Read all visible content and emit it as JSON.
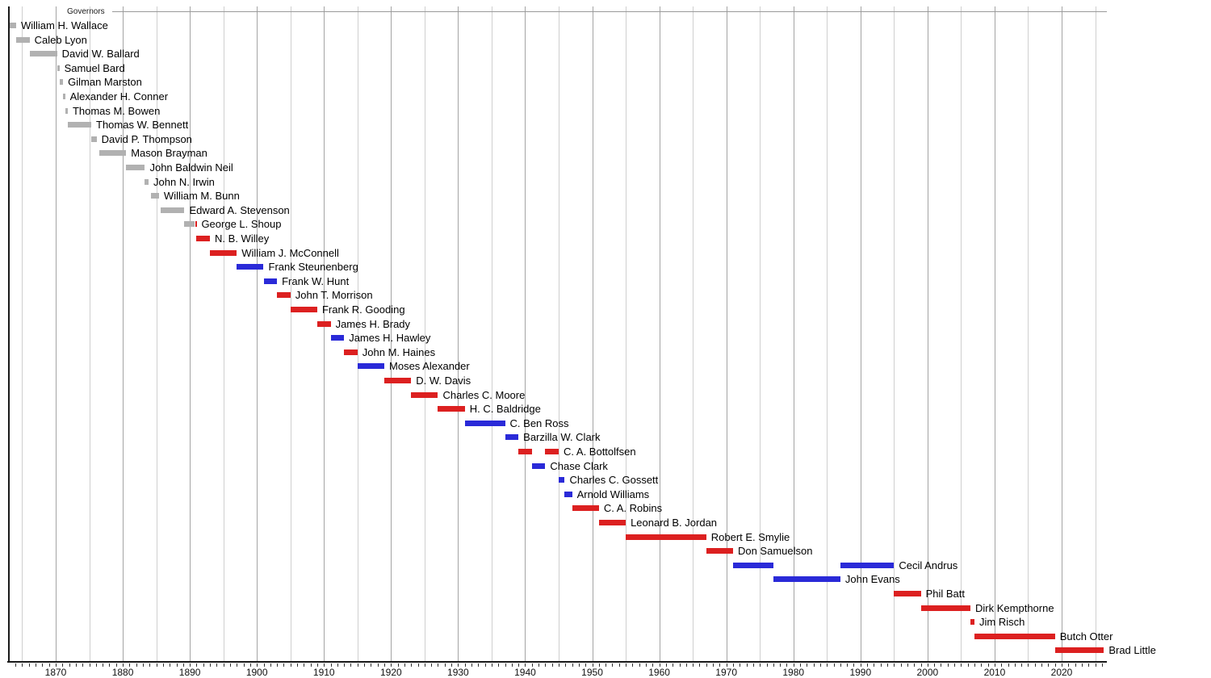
{
  "chart_data": {
    "type": "bar",
    "subtype": "timeline-gantt",
    "title": "Governors",
    "x_axis": {
      "start_year": 1863,
      "end_year": 2026.6,
      "gridline_every_years": 5,
      "tick_every_years": 1,
      "first_tick_year": 1864,
      "last_tick_year": 2026,
      "decade_labels": [
        "1870",
        "1880",
        "1890",
        "1900",
        "1910",
        "1920",
        "1930",
        "1940",
        "1950",
        "1960",
        "1970",
        "1980",
        "1990",
        "2000",
        "2010",
        "2020"
      ],
      "decade_label_years": [
        1870,
        1880,
        1890,
        1900,
        1910,
        1920,
        1930,
        1940,
        1950,
        1960,
        1970,
        1980,
        1990,
        2000,
        2010,
        2020
      ]
    },
    "legend_note": "bar color encodes party",
    "party_colors": {
      "territorial": "#b1b1b1",
      "republican": "#dc2020",
      "democratic": "#2a2ad8"
    },
    "style_colors": {
      "grid_minor": "#cfcfcf",
      "grid_major": "#a4a4a4",
      "axis": "#1a1a1a",
      "tick": "#333333",
      "title_rule": "#999999",
      "background": "#ffffff",
      "label_text": "#000000"
    },
    "governors": [
      {
        "name": "William H. Wallace",
        "terms": [
          {
            "start": 1863.15,
            "end": 1864.1,
            "party": "territorial"
          }
        ]
      },
      {
        "name": "Caleb Lyon",
        "terms": [
          {
            "start": 1864.1,
            "end": 1866.1,
            "party": "territorial"
          }
        ]
      },
      {
        "name": "David W. Ballard",
        "terms": [
          {
            "start": 1866.1,
            "end": 1870.2,
            "party": "territorial"
          }
        ]
      },
      {
        "name": "Samuel Bard",
        "terms": [
          {
            "start": 1870.2,
            "end": 1870.55,
            "party": "territorial"
          }
        ]
      },
      {
        "name": "Gilman Marston",
        "terms": [
          {
            "start": 1870.55,
            "end": 1871.1,
            "party": "territorial"
          }
        ]
      },
      {
        "name": "Alexander H. Conner",
        "terms": [
          {
            "start": 1871.1,
            "end": 1871.4,
            "party": "territorial"
          }
        ]
      },
      {
        "name": "Thomas M. Bowen",
        "terms": [
          {
            "start": 1871.4,
            "end": 1871.8,
            "party": "territorial"
          }
        ]
      },
      {
        "name": "Thomas W. Bennett",
        "terms": [
          {
            "start": 1871.8,
            "end": 1875.3,
            "party": "territorial"
          }
        ]
      },
      {
        "name": "David P. Thompson",
        "terms": [
          {
            "start": 1875.3,
            "end": 1876.1,
            "party": "territorial"
          }
        ]
      },
      {
        "name": "Mason Brayman",
        "terms": [
          {
            "start": 1876.5,
            "end": 1880.5,
            "party": "territorial"
          }
        ]
      },
      {
        "name": "John Baldwin Neil",
        "terms": [
          {
            "start": 1880.5,
            "end": 1883.3,
            "party": "territorial"
          }
        ]
      },
      {
        "name": "John N. Irwin",
        "terms": [
          {
            "start": 1883.3,
            "end": 1883.85,
            "party": "territorial"
          }
        ]
      },
      {
        "name": "William M. Bunn",
        "terms": [
          {
            "start": 1884.2,
            "end": 1885.4,
            "party": "territorial"
          }
        ]
      },
      {
        "name": "Edward A. Stevenson",
        "terms": [
          {
            "start": 1885.7,
            "end": 1889.2,
            "party": "territorial"
          }
        ]
      },
      {
        "name": "George L. Shoup",
        "terms": [
          {
            "start": 1889.2,
            "end": 1890.7,
            "party": "territorial"
          },
          {
            "start": 1890.8,
            "end": 1891.0,
            "party": "republican"
          }
        ]
      },
      {
        "name": "N. B. Willey",
        "terms": [
          {
            "start": 1891.0,
            "end": 1893.0,
            "party": "republican"
          }
        ]
      },
      {
        "name": "William J. McConnell",
        "terms": [
          {
            "start": 1893.0,
            "end": 1897.0,
            "party": "republican"
          }
        ]
      },
      {
        "name": "Frank Steunenberg",
        "terms": [
          {
            "start": 1897.0,
            "end": 1901.0,
            "party": "democratic"
          }
        ]
      },
      {
        "name": "Frank W. Hunt",
        "terms": [
          {
            "start": 1901.0,
            "end": 1903.0,
            "party": "democratic"
          }
        ]
      },
      {
        "name": "John T. Morrison",
        "terms": [
          {
            "start": 1903.0,
            "end": 1905.0,
            "party": "republican"
          }
        ]
      },
      {
        "name": "Frank R. Gooding",
        "terms": [
          {
            "start": 1905.0,
            "end": 1909.0,
            "party": "republican"
          }
        ]
      },
      {
        "name": "James H. Brady",
        "terms": [
          {
            "start": 1909.0,
            "end": 1911.0,
            "party": "republican"
          }
        ]
      },
      {
        "name": "James H. Hawley",
        "terms": [
          {
            "start": 1911.0,
            "end": 1913.0,
            "party": "democratic"
          }
        ]
      },
      {
        "name": "John M. Haines",
        "terms": [
          {
            "start": 1913.0,
            "end": 1915.0,
            "party": "republican"
          }
        ]
      },
      {
        "name": "Moses Alexander",
        "terms": [
          {
            "start": 1915.0,
            "end": 1919.0,
            "party": "democratic"
          }
        ]
      },
      {
        "name": "D. W. Davis",
        "terms": [
          {
            "start": 1919.0,
            "end": 1923.0,
            "party": "republican"
          }
        ]
      },
      {
        "name": "Charles C. Moore",
        "terms": [
          {
            "start": 1923.0,
            "end": 1927.0,
            "party": "republican"
          }
        ]
      },
      {
        "name": "H. C. Baldridge",
        "terms": [
          {
            "start": 1927.0,
            "end": 1931.0,
            "party": "republican"
          }
        ]
      },
      {
        "name": "C. Ben Ross",
        "terms": [
          {
            "start": 1931.0,
            "end": 1937.0,
            "party": "democratic"
          }
        ]
      },
      {
        "name": "Barzilla W. Clark",
        "terms": [
          {
            "start": 1937.0,
            "end": 1939.0,
            "party": "democratic"
          }
        ]
      },
      {
        "name": "C. A. Bottolfsen",
        "terms": [
          {
            "start": 1939.0,
            "end": 1941.0,
            "party": "republican"
          },
          {
            "start": 1943.0,
            "end": 1945.0,
            "party": "republican"
          }
        ]
      },
      {
        "name": "Chase Clark",
        "terms": [
          {
            "start": 1941.0,
            "end": 1943.0,
            "party": "democratic"
          }
        ]
      },
      {
        "name": "Charles C. Gossett",
        "terms": [
          {
            "start": 1945.0,
            "end": 1945.9,
            "party": "democratic"
          }
        ]
      },
      {
        "name": "Arnold Williams",
        "terms": [
          {
            "start": 1945.9,
            "end": 1947.0,
            "party": "democratic"
          }
        ]
      },
      {
        "name": "C. A. Robins",
        "terms": [
          {
            "start": 1947.0,
            "end": 1951.0,
            "party": "republican"
          }
        ]
      },
      {
        "name": "Leonard B. Jordan",
        "terms": [
          {
            "start": 1951.0,
            "end": 1955.0,
            "party": "republican"
          }
        ]
      },
      {
        "name": "Robert E. Smylie",
        "terms": [
          {
            "start": 1955.0,
            "end": 1967.0,
            "party": "republican"
          }
        ]
      },
      {
        "name": "Don Samuelson",
        "terms": [
          {
            "start": 1967.0,
            "end": 1971.0,
            "party": "republican"
          }
        ]
      },
      {
        "name": "Cecil Andrus",
        "terms": [
          {
            "start": 1971.0,
            "end": 1977.0,
            "party": "democratic"
          },
          {
            "start": 1987.0,
            "end": 1995.0,
            "party": "democratic"
          }
        ]
      },
      {
        "name": "John Evans",
        "terms": [
          {
            "start": 1977.0,
            "end": 1987.0,
            "party": "democratic"
          }
        ]
      },
      {
        "name": "Phil Batt",
        "terms": [
          {
            "start": 1995.0,
            "end": 1999.0,
            "party": "republican"
          }
        ]
      },
      {
        "name": "Dirk Kempthorne",
        "terms": [
          {
            "start": 1999.0,
            "end": 2006.4,
            "party": "republican"
          }
        ]
      },
      {
        "name": "Jim Risch",
        "terms": [
          {
            "start": 2006.4,
            "end": 2007.0,
            "party": "republican"
          }
        ]
      },
      {
        "name": "Butch Otter",
        "terms": [
          {
            "start": 2007.0,
            "end": 2019.0,
            "party": "republican"
          }
        ]
      },
      {
        "name": "Brad Little",
        "terms": [
          {
            "start": 2019.0,
            "end": 2026.3,
            "party": "republican"
          }
        ]
      }
    ]
  }
}
